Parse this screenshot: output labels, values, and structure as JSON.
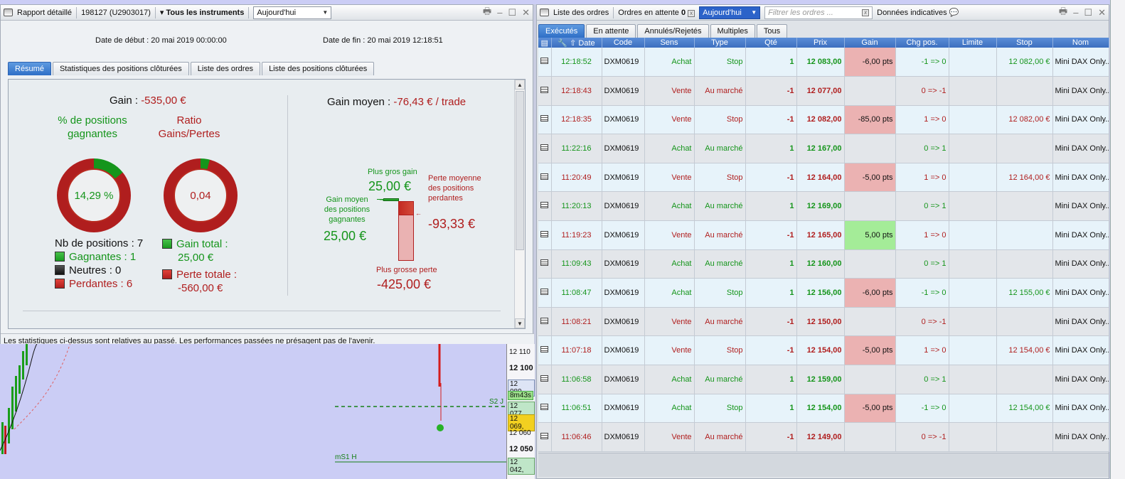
{
  "left_window": {
    "title": "Rapport détaillé",
    "account": "198127 (U2903017)",
    "instruments": "Tous les instruments",
    "period": "Aujourd'hui",
    "start_date": "Date de début :  20 mai 2019 00:00:00",
    "end_date": "Date de fin :  20 mai 2019 12:18:51",
    "tabs": [
      "Résumé",
      "Statistiques des positions clôturées",
      "Liste des ordres",
      "Liste des positions clôturées"
    ],
    "summary": {
      "gain_label": "Gain : ",
      "gain_value": "-535,00 €",
      "pct_title": "% de positions gagnantes",
      "pct_value": "14,29 %",
      "pct_fraction": 0.1429,
      "ratio_title": "Ratio Gains/Pertes",
      "ratio_value": "0,04",
      "ratio_fraction": 0.04,
      "nb_positions": "Nb de positions : 7",
      "gagnantes": "Gagnantes : 1",
      "neutres": "Neutres : 0",
      "perdantes": "Perdantes : 6",
      "gain_total_label": "Gain total :",
      "gain_total_value": "25,00 €",
      "perte_totale_label": "Perte totale :",
      "perte_totale_value": "-560,00 €",
      "gain_moyen_label": "Gain moyen : ",
      "gain_moyen_value": "-76,43 € / trade",
      "plus_gros_gain_label": "Plus gros gain",
      "plus_gros_gain_value": "25,00 €",
      "gain_moyen_pos_label": "Gain moyen des positions gagnantes",
      "gain_moyen_pos_value": "25,00 €",
      "perte_moyenne_label": "Perte moyenne des positions perdantes",
      "perte_moyenne_value": "-93,33 €",
      "plus_grosse_perte_label": "Plus grosse perte",
      "plus_grosse_perte_value": "-425,00 €"
    },
    "disclaimer": "Les statistiques ci-dessus sont relatives au passé. Les performances passées ne présagent pas de l'avenir."
  },
  "chart": {
    "prices": [
      "12 110",
      "12 100",
      "12 089,",
      "8m43s",
      "12 077,",
      "12 069,",
      "12 060",
      "12 050",
      "12 042,"
    ],
    "labels": {
      "s2": "S2 J",
      "ms1": "mS1 H"
    }
  },
  "right_window": {
    "title": "Liste des ordres",
    "pending_label": "Ordres en attente",
    "pending_count": "0",
    "period": "Aujourd'hui",
    "filter_placeholder": "Filtrer les ordres ...",
    "indicative": "Données indicatives",
    "tabs": [
      "Exécutés",
      "En attente",
      "Annulés/Rejetés",
      "Multiples",
      "Tous"
    ],
    "columns": [
      "Date",
      "Code",
      "Sens",
      "Type",
      "Qté",
      "Prix",
      "Gain",
      "Chg pos.",
      "Limite",
      "Stop",
      "Nom"
    ],
    "rows": [
      {
        "time": "12:18:52",
        "code": "DXM0619",
        "sens": "Achat",
        "type": "Stop",
        "qty": "1",
        "price": "12 083,00",
        "gain": "-6,00 pts",
        "chg": "-1 => 0",
        "limite": "",
        "stop": "12 082,00 €",
        "nom": "Mini DAX Only..."
      },
      {
        "time": "12:18:43",
        "code": "DXM0619",
        "sens": "Vente",
        "type": "Au marché",
        "qty": "-1",
        "price": "12 077,00",
        "gain": "",
        "chg": "0 => -1",
        "limite": "",
        "stop": "",
        "nom": "Mini DAX Only..."
      },
      {
        "time": "12:18:35",
        "code": "DXM0619",
        "sens": "Vente",
        "type": "Stop",
        "qty": "-1",
        "price": "12 082,00",
        "gain": "-85,00 pts",
        "chg": "1 => 0",
        "limite": "",
        "stop": "12 082,00 €",
        "nom": "Mini DAX Only..."
      },
      {
        "time": "11:22:16",
        "code": "DXM0619",
        "sens": "Achat",
        "type": "Au marché",
        "qty": "1",
        "price": "12 167,00",
        "gain": "",
        "chg": "0 => 1",
        "limite": "",
        "stop": "",
        "nom": "Mini DAX Only..."
      },
      {
        "time": "11:20:49",
        "code": "DXM0619",
        "sens": "Vente",
        "type": "Stop",
        "qty": "-1",
        "price": "12 164,00",
        "gain": "-5,00 pts",
        "chg": "1 => 0",
        "limite": "",
        "stop": "12 164,00 €",
        "nom": "Mini DAX Only..."
      },
      {
        "time": "11:20:13",
        "code": "DXM0619",
        "sens": "Achat",
        "type": "Au marché",
        "qty": "1",
        "price": "12 169,00",
        "gain": "",
        "chg": "0 => 1",
        "limite": "",
        "stop": "",
        "nom": "Mini DAX Only..."
      },
      {
        "time": "11:19:23",
        "code": "DXM0619",
        "sens": "Vente",
        "type": "Au marché",
        "qty": "-1",
        "price": "12 165,00",
        "gain": "5,00 pts",
        "chg": "1 => 0",
        "limite": "",
        "stop": "",
        "nom": "Mini DAX Only..."
      },
      {
        "time": "11:09:43",
        "code": "DXM0619",
        "sens": "Achat",
        "type": "Au marché",
        "qty": "1",
        "price": "12 160,00",
        "gain": "",
        "chg": "0 => 1",
        "limite": "",
        "stop": "",
        "nom": "Mini DAX Only..."
      },
      {
        "time": "11:08:47",
        "code": "DXM0619",
        "sens": "Achat",
        "type": "Stop",
        "qty": "1",
        "price": "12 156,00",
        "gain": "-6,00 pts",
        "chg": "-1 => 0",
        "limite": "",
        "stop": "12 155,00 €",
        "nom": "Mini DAX Only..."
      },
      {
        "time": "11:08:21",
        "code": "DXM0619",
        "sens": "Vente",
        "type": "Au marché",
        "qty": "-1",
        "price": "12 150,00",
        "gain": "",
        "chg": "0 => -1",
        "limite": "",
        "stop": "",
        "nom": "Mini DAX Only..."
      },
      {
        "time": "11:07:18",
        "code": "DXM0619",
        "sens": "Vente",
        "type": "Stop",
        "qty": "-1",
        "price": "12 154,00",
        "gain": "-5,00 pts",
        "chg": "1 => 0",
        "limite": "",
        "stop": "12 154,00 €",
        "nom": "Mini DAX Only..."
      },
      {
        "time": "11:06:58",
        "code": "DXM0619",
        "sens": "Achat",
        "type": "Au marché",
        "qty": "1",
        "price": "12 159,00",
        "gain": "",
        "chg": "0 => 1",
        "limite": "",
        "stop": "",
        "nom": "Mini DAX Only..."
      },
      {
        "time": "11:06:51",
        "code": "DXM0619",
        "sens": "Achat",
        "type": "Stop",
        "qty": "1",
        "price": "12 154,00",
        "gain": "-5,00 pts",
        "chg": "-1 => 0",
        "limite": "",
        "stop": "12 154,00 €",
        "nom": "Mini DAX Only..."
      },
      {
        "time": "11:06:46",
        "code": "DXM0619",
        "sens": "Vente",
        "type": "Au marché",
        "qty": "-1",
        "price": "12 149,00",
        "gain": "",
        "chg": "0 => -1",
        "limite": "",
        "stop": "",
        "nom": "Mini DAX Only..."
      }
    ]
  },
  "colors": {
    "green": "#15951b",
    "red": "#b01e1e",
    "accent_blue": "#2f6fc7"
  }
}
